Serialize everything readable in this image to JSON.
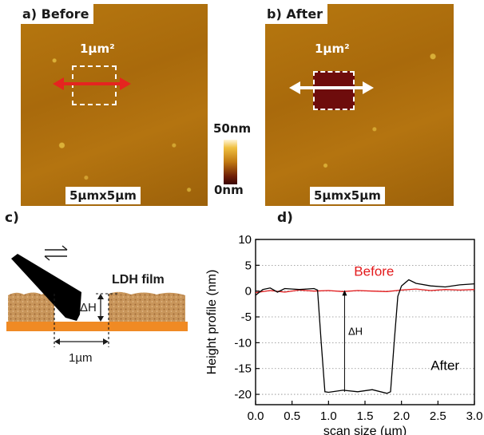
{
  "panel_a": {
    "title": "a) Before",
    "area_label": "1µm²",
    "scale_label": "5µmx5µm"
  },
  "panel_b": {
    "title": "b) After",
    "area_label": "1µm²",
    "scale_label": "5µmx5µm"
  },
  "colorbar": {
    "max_label": "50nm",
    "min_label": "0nm"
  },
  "panel_c": {
    "label": "c)",
    "film_label": "LDH film",
    "depth_label": "ΔH",
    "width_label": "1µm"
  },
  "panel_d": {
    "label": "d)"
  },
  "colors": {
    "before": "#e31a1c",
    "after": "#000000",
    "afm_surface": "#b0720e",
    "scratch": "#6e0c0c",
    "film": "#c8955a",
    "substrate": "#f08a24"
  },
  "chart_data": {
    "type": "line",
    "title": "",
    "xlabel": "scan size (µm)",
    "ylabel": "Height profile (nm)",
    "xlim": [
      0.0,
      3.0
    ],
    "ylim": [
      -22,
      10
    ],
    "xticks": [
      "0.0",
      "0.5",
      "1.0",
      "1.5",
      "2.0",
      "2.5",
      "3.0"
    ],
    "yticks": [
      "10",
      "5",
      "0",
      "-5",
      "-10",
      "-15",
      "-20"
    ],
    "grid": "horizontal dotted",
    "series": [
      {
        "name": "Before",
        "color": "#e31a1c",
        "x": [
          0.0,
          0.2,
          0.4,
          0.6,
          0.8,
          1.0,
          1.2,
          1.4,
          1.6,
          1.8,
          2.0,
          2.2,
          2.4,
          2.6,
          2.8,
          3.0
        ],
        "y": [
          -0.3,
          0.1,
          -0.2,
          0.2,
          0.0,
          0.1,
          -0.1,
          0.1,
          0.0,
          -0.1,
          0.2,
          0.4,
          0.1,
          0.3,
          0.2,
          0.3
        ]
      },
      {
        "name": "After",
        "color": "#000000",
        "x": [
          0.0,
          0.1,
          0.2,
          0.3,
          0.4,
          0.5,
          0.6,
          0.7,
          0.8,
          0.85,
          0.9,
          0.95,
          1.0,
          1.2,
          1.4,
          1.6,
          1.8,
          1.85,
          1.9,
          1.95,
          2.0,
          2.1,
          2.2,
          2.4,
          2.6,
          2.8,
          3.0
        ],
        "y": [
          -0.8,
          0.3,
          0.6,
          -0.2,
          0.5,
          0.4,
          0.3,
          0.4,
          0.5,
          0.2,
          -10,
          -19.5,
          -19.6,
          -19.2,
          -19.5,
          -19.1,
          -19.8,
          -19.5,
          -10,
          -1.0,
          1.0,
          2.2,
          1.5,
          1.0,
          0.8,
          1.2,
          1.4
        ]
      }
    ],
    "annotations": [
      {
        "text": "Before",
        "x": 1.35,
        "y": 3.0,
        "color": "#e31a1c"
      },
      {
        "text": "After",
        "x": 2.4,
        "y": -15.3,
        "color": "#000000"
      },
      {
        "text": "ΔH",
        "x": 1.27,
        "y": -8.5,
        "color": "#000000"
      }
    ]
  }
}
